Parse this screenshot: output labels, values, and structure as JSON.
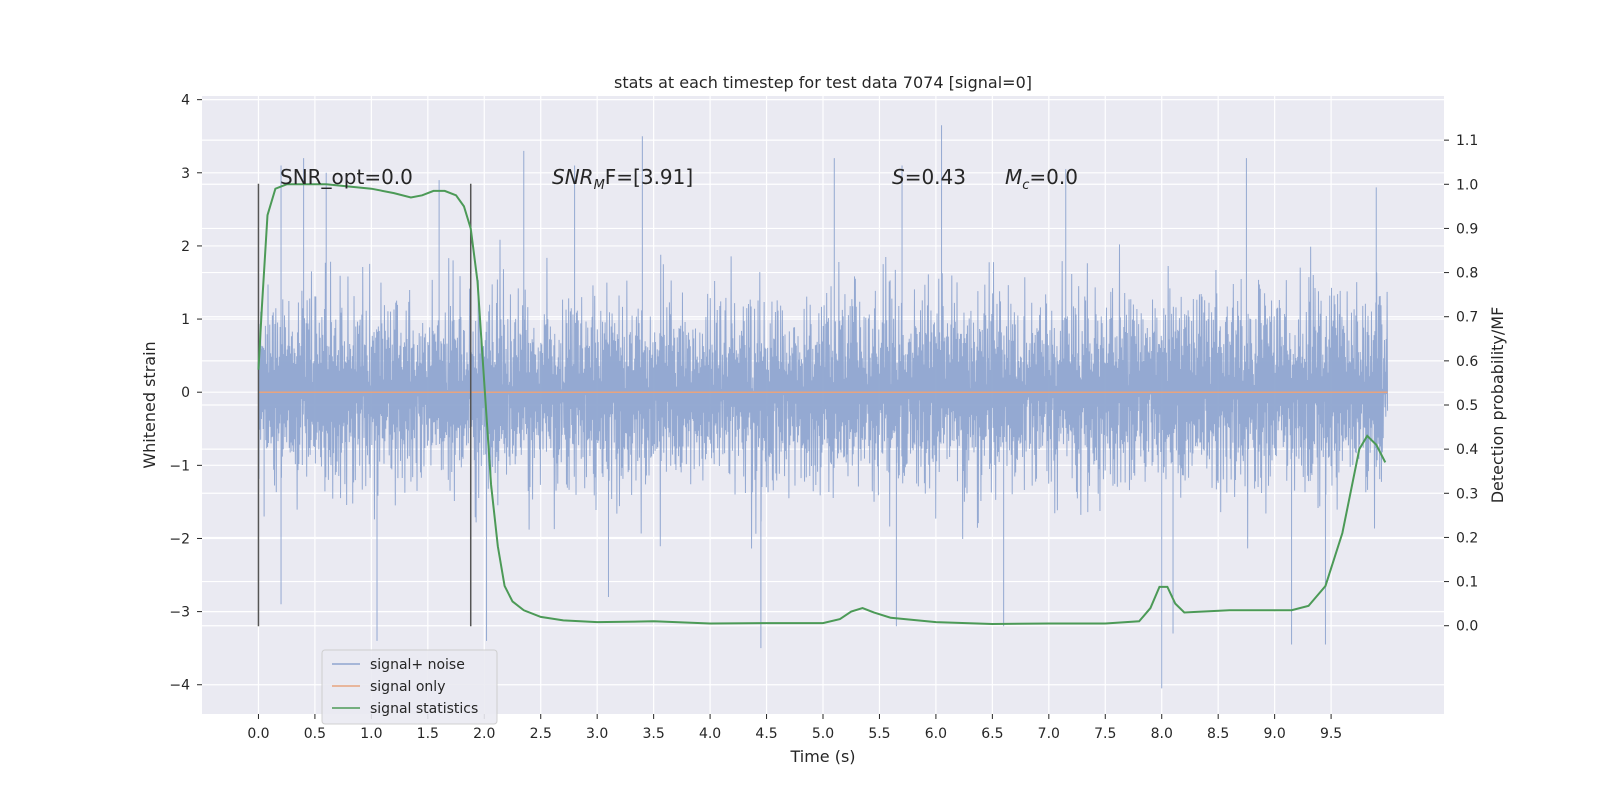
{
  "chart_data": {
    "type": "line",
    "title": "stats at each timestep for test data 7074 [signal=0]",
    "xlabel": "Time (s)",
    "ylabel": "Whitened strain",
    "y2label": "Detection probability/MF",
    "xlim": [
      -0.5,
      10.5
    ],
    "ylim": [
      -4.4,
      4.05
    ],
    "y2lim": [
      -0.2,
      1.2
    ],
    "x_ticks": [
      0.0,
      0.5,
      1.0,
      1.5,
      2.0,
      2.5,
      3.0,
      3.5,
      4.0,
      4.5,
      5.0,
      5.5,
      6.0,
      6.5,
      7.0,
      7.5,
      8.0,
      8.5,
      9.0,
      9.5
    ],
    "x_tick_labels": [
      "0.0",
      "0.5",
      "1.0",
      "1.5",
      "2.0",
      "2.5",
      "3.0",
      "3.5",
      "4.0",
      "4.5",
      "5.0",
      "5.5",
      "6.0",
      "6.5",
      "7.0",
      "7.5",
      "8.0",
      "8.5",
      "9.0",
      "9.5"
    ],
    "y_ticks": [
      4,
      3,
      2,
      1,
      0,
      -1,
      -2,
      -3,
      -4
    ],
    "y_tick_labels": [
      "4",
      "3",
      "2",
      "1",
      "0",
      "−1",
      "−2",
      "−3",
      "−4"
    ],
    "y2_ticks": [
      1.1,
      1.0,
      0.9,
      0.8,
      0.7,
      0.6,
      0.5,
      0.4,
      0.3,
      0.2,
      0.1,
      0.0
    ],
    "y2_tick_labels": [
      "1.1",
      "1.0",
      "0.9",
      "0.8",
      "0.7",
      "0.6",
      "0.5",
      "0.4",
      "0.3",
      "0.2",
      "0.1",
      "0.0"
    ],
    "grid": true,
    "legend_placement": "lower-left",
    "vertical_lines": [
      {
        "x": 0.0,
        "y": [
          -3.2,
          2.85
        ]
      },
      {
        "x": 1.88,
        "y": [
          -3.2,
          2.85
        ]
      }
    ],
    "annotations": {
      "snr_opt": "SNR_opt=0.0",
      "snr_mf_main": "SNR",
      "snr_mf_sub": "M",
      "snr_mf_rest": "F=[3.91]",
      "s_main": "S",
      "s_rest": "=0.43",
      "mc_main": "M",
      "mc_sub": "c",
      "mc_rest": "=0.0"
    },
    "series": [
      {
        "name": "signal+ noise",
        "color": "#8fa5d0",
        "x_range": [
          0.0,
          10.0
        ],
        "typical_amplitude": 1.2,
        "peaks": [
          {
            "x": 0.02,
            "y": 1.1
          },
          {
            "x": 0.05,
            "y": -1.7
          },
          {
            "x": 0.2,
            "y": 3.1
          },
          {
            "x": 0.4,
            "y": 3.2
          },
          {
            "x": 0.6,
            "y": 3.0
          },
          {
            "x": 0.2,
            "y": -2.9
          },
          {
            "x": 1.05,
            "y": -3.4
          },
          {
            "x": 1.6,
            "y": 2.9
          },
          {
            "x": 2.02,
            "y": -3.4
          },
          {
            "x": 2.35,
            "y": 3.3
          },
          {
            "x": 2.8,
            "y": 3.1
          },
          {
            "x": 3.4,
            "y": 3.5
          },
          {
            "x": 4.45,
            "y": -3.5
          },
          {
            "x": 5.1,
            "y": 3.2
          },
          {
            "x": 5.7,
            "y": 3.1
          },
          {
            "x": 6.05,
            "y": 3.65
          },
          {
            "x": 6.6,
            "y": -3.2
          },
          {
            "x": 8.0,
            "y": -4.05
          },
          {
            "x": 8.1,
            "y": -3.3
          },
          {
            "x": 8.75,
            "y": 3.2
          },
          {
            "x": 9.15,
            "y": -3.45
          },
          {
            "x": 9.45,
            "y": -3.45
          },
          {
            "x": 9.9,
            "y": 2.8
          },
          {
            "x": 5.65,
            "y": -3.2
          },
          {
            "x": 3.1,
            "y": -2.8
          },
          {
            "x": 7.15,
            "y": 3.05
          }
        ]
      },
      {
        "name": "signal only",
        "color": "#e8a47f",
        "x": [
          0.0,
          10.0
        ],
        "y": [
          0.0,
          0.0
        ]
      },
      {
        "name": "signal statistics",
        "color": "#4c9a57",
        "axis": "right",
        "x": [
          0.0,
          0.03,
          0.08,
          0.15,
          0.25,
          0.4,
          0.6,
          0.8,
          1.0,
          1.2,
          1.35,
          1.45,
          1.55,
          1.65,
          1.75,
          1.82,
          1.88,
          1.94,
          2.0,
          2.06,
          2.12,
          2.18,
          2.25,
          2.35,
          2.5,
          2.7,
          3.0,
          3.5,
          4.0,
          4.5,
          5.0,
          5.15,
          5.25,
          5.35,
          5.45,
          5.6,
          6.0,
          6.5,
          7.0,
          7.5,
          7.8,
          7.9,
          7.98,
          8.05,
          8.12,
          8.2,
          8.35,
          8.6,
          9.0,
          9.15,
          9.3,
          9.45,
          9.6,
          9.75,
          9.82,
          9.9,
          9.98
        ],
        "y": [
          0.58,
          0.72,
          0.93,
          0.99,
          1.0,
          1.0,
          1.0,
          0.995,
          0.99,
          0.98,
          0.97,
          0.975,
          0.985,
          0.985,
          0.975,
          0.95,
          0.9,
          0.78,
          0.55,
          0.32,
          0.18,
          0.09,
          0.055,
          0.035,
          0.02,
          0.012,
          0.008,
          0.01,
          0.005,
          0.006,
          0.006,
          0.015,
          0.032,
          0.04,
          0.03,
          0.018,
          0.008,
          0.004,
          0.005,
          0.005,
          0.01,
          0.04,
          0.088,
          0.088,
          0.05,
          0.03,
          0.032,
          0.035,
          0.035,
          0.035,
          0.045,
          0.09,
          0.21,
          0.4,
          0.43,
          0.41,
          0.37
        ]
      }
    ]
  }
}
